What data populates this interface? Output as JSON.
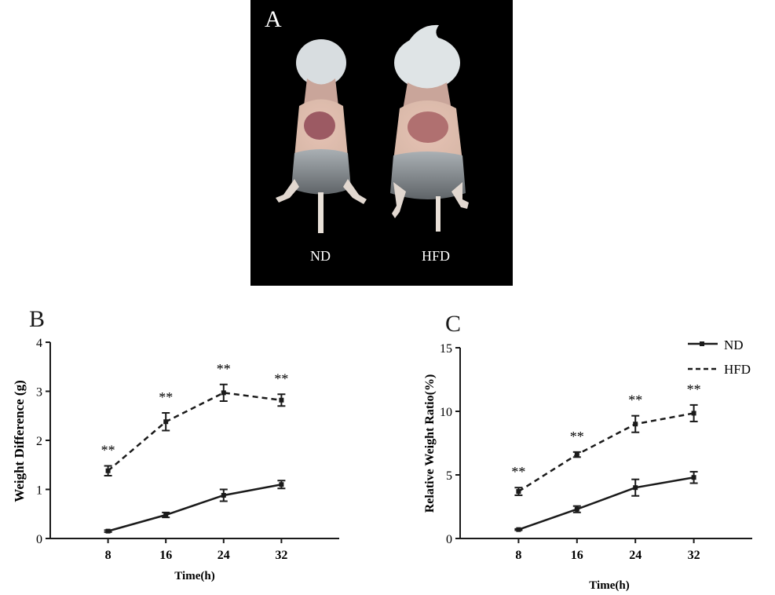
{
  "panel_a": {
    "letter": "A",
    "labels": [
      "ND",
      "HFD"
    ]
  },
  "chart_data": [
    {
      "panel": "B",
      "type": "line",
      "x": [
        8,
        16,
        24,
        32
      ],
      "xlabel": "Time(h)",
      "ylabel": "Weight Difference (g)",
      "ylim": [
        0,
        4
      ],
      "yticks": [
        0,
        1,
        2,
        3,
        4
      ],
      "series": [
        {
          "name": "",
          "style": "solid",
          "values": [
            0.15,
            0.48,
            0.88,
            1.1
          ],
          "errors": [
            0.02,
            0.05,
            0.12,
            0.08
          ]
        },
        {
          "name": "",
          "style": "dashed",
          "values": [
            1.38,
            2.38,
            2.97,
            2.82
          ],
          "errors": [
            0.1,
            0.18,
            0.17,
            0.12
          ]
        }
      ],
      "annotations": [
        "**",
        "**",
        "**",
        "**"
      ]
    },
    {
      "panel": "C",
      "type": "line",
      "x": [
        8,
        16,
        24,
        32
      ],
      "xlabel": "Time(h)",
      "ylabel": "Relative Weight Ratio(%)",
      "ylim": [
        0,
        15
      ],
      "yticks": [
        0,
        5,
        10,
        15
      ],
      "series": [
        {
          "name": "ND",
          "style": "solid",
          "values": [
            0.7,
            2.3,
            4.0,
            4.8
          ],
          "errors": [
            0.05,
            0.25,
            0.65,
            0.45
          ]
        },
        {
          "name": "HFD",
          "style": "dashed",
          "values": [
            3.7,
            6.6,
            9.0,
            9.85
          ],
          "errors": [
            0.3,
            0.2,
            0.65,
            0.65
          ]
        }
      ],
      "annotations": [
        "**",
        "**",
        "**",
        "**"
      ],
      "legend_position": "top-right"
    }
  ]
}
